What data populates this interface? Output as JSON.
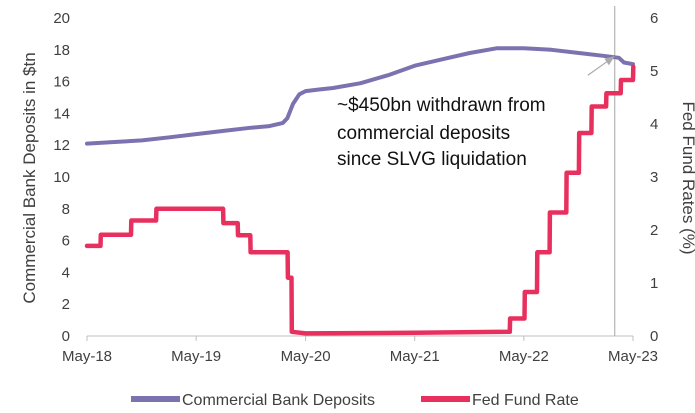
{
  "chart_data": {
    "type": "line",
    "x_ticks": [
      "May-18",
      "May-19",
      "May-20",
      "May-21",
      "May-22",
      "May-23"
    ],
    "y_left": {
      "label": "Commercial Bank Deposits in $tn",
      "ticks": [
        0,
        2,
        4,
        6,
        8,
        10,
        12,
        14,
        16,
        18,
        20
      ],
      "range": [
        0,
        20
      ]
    },
    "y_right": {
      "label": "Fed Fund Rates (%)",
      "ticks": [
        0,
        1,
        2,
        3,
        4,
        5,
        6
      ],
      "range": [
        0,
        6
      ]
    },
    "grid": false,
    "legend_position": "bottom",
    "reference_line_x": "Mar-23",
    "annotation": {
      "lines": [
        "~$450bn withdrawn from",
        "commercial deposits",
        "since SLVG liquidation"
      ],
      "arrow_from_x": "Dec-22",
      "arrow_from_y": 16.4,
      "arrow_to_x": "Mar-23",
      "arrow_to_y": 17.6
    },
    "series": [
      {
        "name": "Commercial Bank Deposits",
        "color": "#7d72b0",
        "axis": "left",
        "points": [
          [
            "2018-05-01",
            12.1
          ],
          [
            "2018-08-01",
            12.2
          ],
          [
            "2018-11-01",
            12.3
          ],
          [
            "2019-02-01",
            12.5
          ],
          [
            "2019-05-01",
            12.7
          ],
          [
            "2019-08-01",
            12.9
          ],
          [
            "2019-11-01",
            13.1
          ],
          [
            "2020-01-01",
            13.2
          ],
          [
            "2020-02-15",
            13.4
          ],
          [
            "2020-03-01",
            13.7
          ],
          [
            "2020-03-20",
            14.6
          ],
          [
            "2020-04-10",
            15.2
          ],
          [
            "2020-05-01",
            15.4
          ],
          [
            "2020-06-15",
            15.5
          ],
          [
            "2020-08-01",
            15.6
          ],
          [
            "2020-11-01",
            15.9
          ],
          [
            "2021-02-01",
            16.4
          ],
          [
            "2021-05-01",
            17.0
          ],
          [
            "2021-08-01",
            17.4
          ],
          [
            "2021-11-01",
            17.8
          ],
          [
            "2022-02-01",
            18.1
          ],
          [
            "2022-05-01",
            18.1
          ],
          [
            "2022-08-01",
            18.0
          ],
          [
            "2022-11-01",
            17.8
          ],
          [
            "2023-02-01",
            17.6
          ],
          [
            "2023-03-15",
            17.5
          ],
          [
            "2023-04-01",
            17.2
          ],
          [
            "2023-05-01",
            17.1
          ]
        ]
      },
      {
        "name": "Fed Fund Rate",
        "color": "#e8305f",
        "axis": "right",
        "points": [
          [
            "2018-05-01",
            1.7
          ],
          [
            "2018-06-15",
            1.7
          ],
          [
            "2018-06-16",
            1.91
          ],
          [
            "2018-09-25",
            1.91
          ],
          [
            "2018-09-26",
            2.18
          ],
          [
            "2018-12-18",
            2.18
          ],
          [
            "2018-12-19",
            2.4
          ],
          [
            "2019-07-30",
            2.4
          ],
          [
            "2019-07-31",
            2.13
          ],
          [
            "2019-09-17",
            2.13
          ],
          [
            "2019-09-18",
            1.9
          ],
          [
            "2019-10-29",
            1.9
          ],
          [
            "2019-10-30",
            1.58
          ],
          [
            "2020-03-02",
            1.58
          ],
          [
            "2020-03-03",
            1.1
          ],
          [
            "2020-03-15",
            1.1
          ],
          [
            "2020-03-16",
            0.08
          ],
          [
            "2020-05-01",
            0.05
          ],
          [
            "2021-05-01",
            0.06
          ],
          [
            "2022-03-15",
            0.08
          ],
          [
            "2022-03-16",
            0.33
          ],
          [
            "2022-05-03",
            0.33
          ],
          [
            "2022-05-04",
            0.83
          ],
          [
            "2022-06-14",
            0.83
          ],
          [
            "2022-06-15",
            1.58
          ],
          [
            "2022-07-26",
            1.58
          ],
          [
            "2022-07-27",
            2.33
          ],
          [
            "2022-09-20",
            2.33
          ],
          [
            "2022-09-21",
            3.08
          ],
          [
            "2022-11-01",
            3.08
          ],
          [
            "2022-11-02",
            3.83
          ],
          [
            "2022-12-13",
            3.83
          ],
          [
            "2022-12-14",
            4.33
          ],
          [
            "2023-01-31",
            4.33
          ],
          [
            "2023-02-01",
            4.58
          ],
          [
            "2023-03-21",
            4.58
          ],
          [
            "2023-03-22",
            4.83
          ],
          [
            "2023-05-01",
            4.83
          ],
          [
            "2023-05-02",
            5.08
          ]
        ]
      }
    ]
  }
}
